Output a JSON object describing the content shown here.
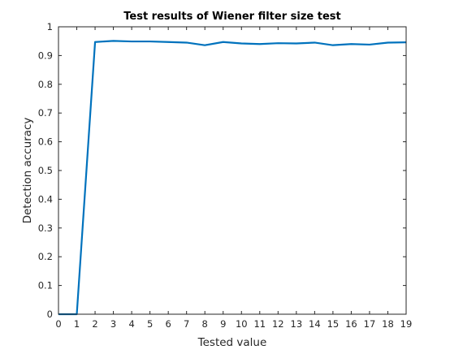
{
  "chart_data": {
    "type": "line",
    "title": "Test results of Wiener filter size test",
    "xlabel": "Tested value",
    "ylabel": "Detection accuracy",
    "xlim": [
      0,
      19
    ],
    "ylim": [
      0,
      1
    ],
    "xticks": [
      0,
      1,
      2,
      3,
      4,
      5,
      6,
      7,
      8,
      9,
      10,
      11,
      12,
      13,
      14,
      15,
      16,
      17,
      18,
      19
    ],
    "yticks": [
      0,
      0.1,
      0.2,
      0.3,
      0.4,
      0.5,
      0.6,
      0.7,
      0.8,
      0.9,
      1
    ],
    "ytick_labels": [
      "0",
      "0.1",
      "0.2",
      "0.3",
      "0.4",
      "0.5",
      "0.6",
      "0.7",
      "0.8",
      "0.9",
      "1"
    ],
    "grid": false,
    "series": [
      {
        "color": "#0072BD",
        "x": [
          0,
          1,
          2,
          3,
          4,
          5,
          6,
          7,
          8,
          9,
          10,
          11,
          12,
          13,
          14,
          15,
          16,
          17,
          18,
          19
        ],
        "y": [
          0,
          0,
          0.947,
          0.951,
          0.949,
          0.949,
          0.947,
          0.945,
          0.936,
          0.947,
          0.942,
          0.94,
          0.943,
          0.942,
          0.945,
          0.936,
          0.94,
          0.938,
          0.945,
          0.946
        ]
      }
    ]
  }
}
